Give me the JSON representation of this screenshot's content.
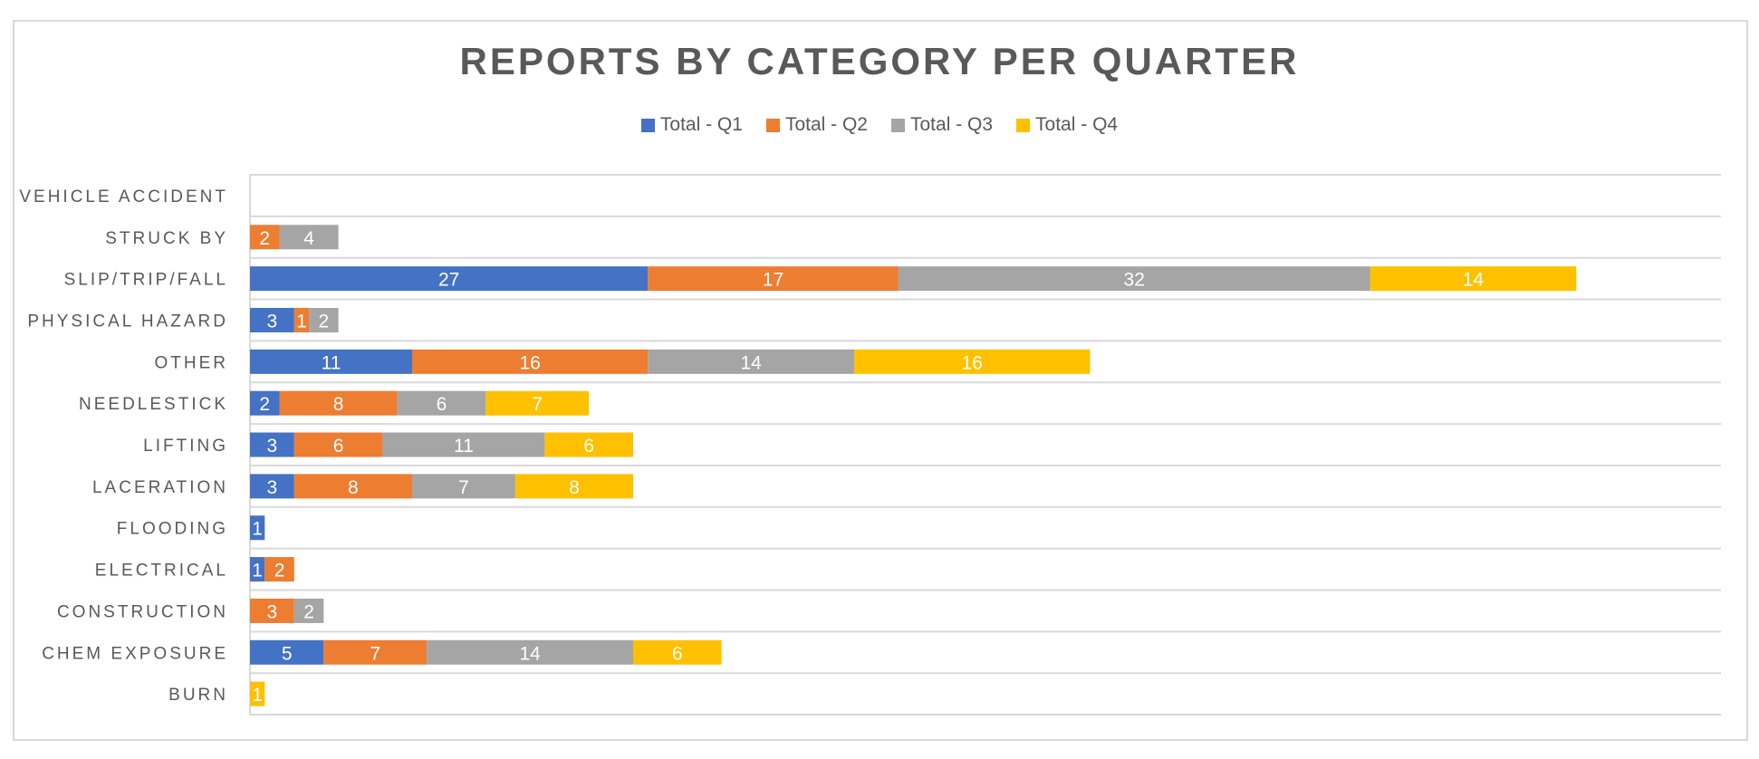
{
  "chart_data": {
    "type": "bar",
    "orientation": "horizontal",
    "stacked": true,
    "title": "REPORTS BY CATEGORY PER QUARTER",
    "legend_position": "top",
    "grid": true,
    "categories": [
      "VEHICLE ACCIDENT",
      "STRUCK BY",
      "SLIP/TRIP/FALL",
      "PHYSICAL HAZARD",
      "OTHER",
      "NEEDLESTICK",
      "LIFTING",
      "LACERATION",
      "FLOODING",
      "ELECTRICAL",
      "CONSTRUCTION",
      "CHEM EXPOSURE",
      "BURN"
    ],
    "series": [
      {
        "name": "Total - Q1",
        "color": "#4472C4",
        "values": [
          null,
          null,
          27,
          3,
          11,
          2,
          3,
          3,
          1,
          1,
          null,
          5,
          null
        ]
      },
      {
        "name": "Total - Q2",
        "color": "#ED7D31",
        "values": [
          null,
          2,
          17,
          1,
          16,
          8,
          6,
          8,
          null,
          2,
          3,
          7,
          null
        ]
      },
      {
        "name": "Total - Q3",
        "color": "#A5A5A5",
        "values": [
          null,
          4,
          32,
          2,
          14,
          6,
          11,
          7,
          null,
          null,
          2,
          14,
          null
        ]
      },
      {
        "name": "Total - Q4",
        "color": "#FFC000",
        "values": [
          null,
          null,
          14,
          null,
          16,
          7,
          6,
          8,
          null,
          null,
          null,
          6,
          1
        ]
      }
    ],
    "xlim": [
      0,
      100
    ]
  }
}
